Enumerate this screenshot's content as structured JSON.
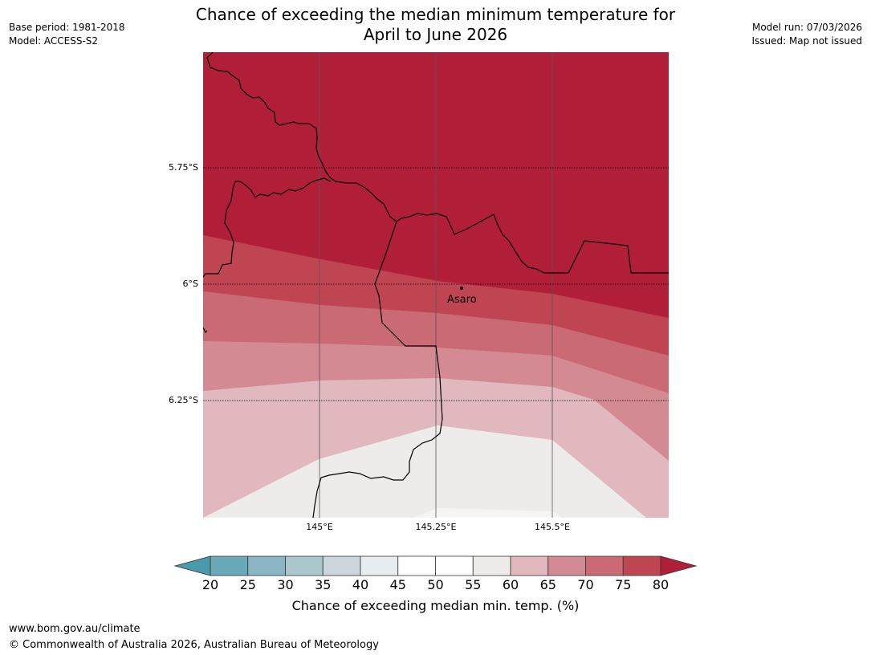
{
  "header": {
    "title_line1": "Chance of exceeding the median minimum temperature for",
    "title_line2": "April to June 2026",
    "base_period": "Base period: 1981-2018",
    "model": "Model: ACCESS-S2",
    "model_run": "Model run: 07/03/2026",
    "issued": "Issued: Map not issued"
  },
  "map": {
    "lat_labels": [
      "5.75°S",
      "6°S",
      "6.25°S"
    ],
    "lon_labels": [
      "145°E",
      "145.25°E",
      "145.5°E"
    ],
    "place": {
      "name": "Asaro",
      "lat": -6.01,
      "lon": 145.3
    }
  },
  "colorbar": {
    "ticks": [
      "20",
      "25",
      "30",
      "35",
      "40",
      "45",
      "50",
      "55",
      "60",
      "65",
      "70",
      "75",
      "80"
    ],
    "label": "Chance of exceeding median min. temp. (%)",
    "colors": [
      "#6aa9b8",
      "#8ab5c2",
      "#a9c7cd",
      "#cbd7db",
      "#e8eef0",
      "#ffffff",
      "#ffffff",
      "#eeecea",
      "#e0b8bd",
      "#d48a93",
      "#ca6a75",
      "#c04553",
      "#b01e38"
    ],
    "low_extend_color": "#4a9aab"
  },
  "footer": {
    "url": "www.bom.gov.au/climate",
    "copyright": "© Commonwealth of Australia 2026, Australian Bureau of Meteorology"
  }
}
